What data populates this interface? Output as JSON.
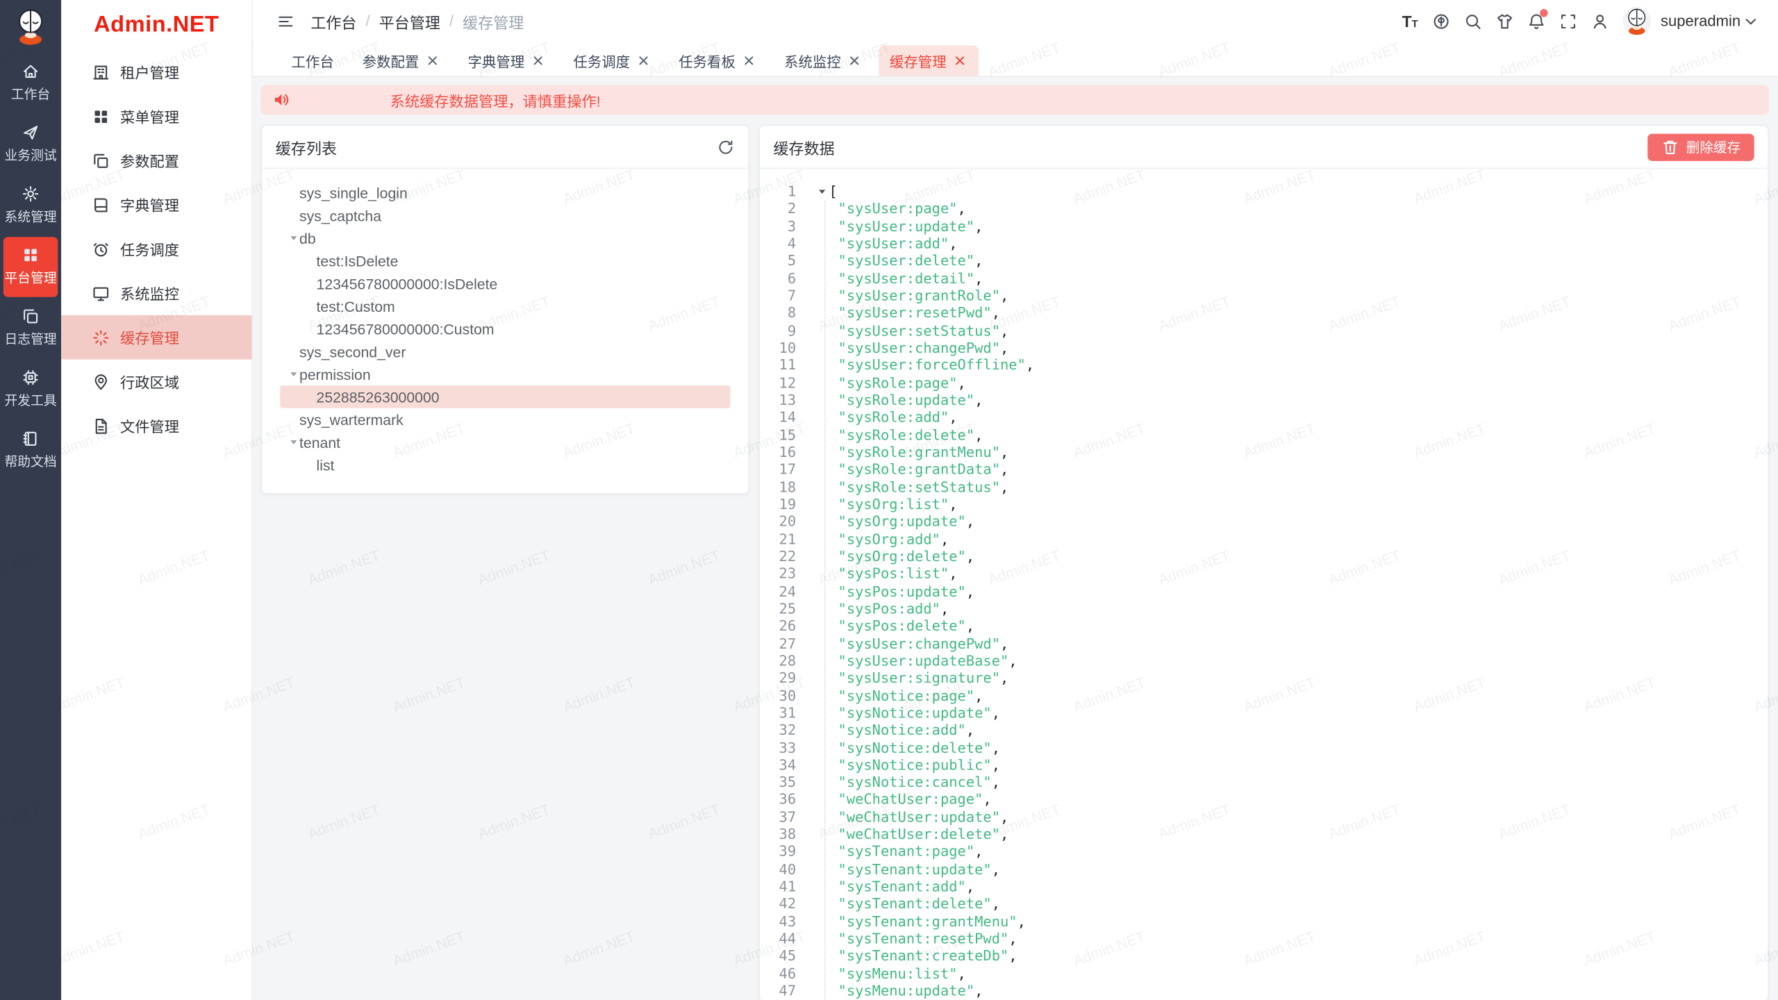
{
  "watermark": {
    "text": "Admin.NET"
  },
  "theme": {
    "brand_red": "#ee4334",
    "logo_red": "#f01f10",
    "danger_button": "#f56c6c",
    "alert_bg": "#fde2e2",
    "alert_text": "#f04e43",
    "sidebar_dark_bg": "#333b4d",
    "active_menu_bg": "#f3cbc6",
    "json_string_green": "#42b983",
    "content_bg": "#f4f5f7"
  },
  "rail": {
    "items": [
      {
        "icon": "home-icon",
        "label": "工作台",
        "active": false
      },
      {
        "icon": "send-icon",
        "label": "业务测试",
        "active": false
      },
      {
        "icon": "gear-icon",
        "label": "系统管理",
        "active": false
      },
      {
        "icon": "grid-icon",
        "label": "平台管理",
        "active": true
      },
      {
        "icon": "copy-icon",
        "label": "日志管理",
        "active": false
      },
      {
        "icon": "chip-icon",
        "label": "开发工具",
        "active": false
      },
      {
        "icon": "notebook-icon",
        "label": "帮助文档",
        "active": false
      }
    ]
  },
  "sidebar": {
    "logo": "Admin.NET",
    "items": [
      {
        "icon": "building-icon",
        "label": "租户管理",
        "active": false
      },
      {
        "icon": "menu-grid-icon",
        "label": "菜单管理",
        "active": false
      },
      {
        "icon": "copy-icon",
        "label": "参数配置",
        "active": false
      },
      {
        "icon": "book-icon",
        "label": "字典管理",
        "active": false
      },
      {
        "icon": "alarm-icon",
        "label": "任务调度",
        "active": false
      },
      {
        "icon": "monitor-icon",
        "label": "系统监控",
        "active": false
      },
      {
        "icon": "spinner-icon",
        "label": "缓存管理",
        "active": true
      },
      {
        "icon": "location-icon",
        "label": "行政区域",
        "active": false
      },
      {
        "icon": "file-icon",
        "label": "文件管理",
        "active": false
      }
    ]
  },
  "header": {
    "breadcrumb": {
      "items": [
        "工作台",
        "平台管理",
        "缓存管理"
      ],
      "separator": "/"
    },
    "actions": [
      {
        "icon": "font-size-icon",
        "badge": false
      },
      {
        "icon": "language-icon",
        "badge": false
      },
      {
        "icon": "search-icon",
        "badge": false
      },
      {
        "icon": "theme-icon",
        "badge": false
      },
      {
        "icon": "notification-bell-icon",
        "badge": true
      },
      {
        "icon": "fullscreen-icon",
        "badge": false
      },
      {
        "icon": "user-icon",
        "badge": false
      }
    ],
    "username": "superadmin"
  },
  "tabs": [
    {
      "label": "工作台",
      "closable": false,
      "active": false
    },
    {
      "label": "参数配置",
      "closable": true,
      "active": false
    },
    {
      "label": "字典管理",
      "closable": true,
      "active": false
    },
    {
      "label": "任务调度",
      "closable": true,
      "active": false
    },
    {
      "label": "任务看板",
      "closable": true,
      "active": false
    },
    {
      "label": "系统监控",
      "closable": true,
      "active": false
    },
    {
      "label": "缓存管理",
      "closable": true,
      "active": true
    }
  ],
  "alert": {
    "text": "系统缓存数据管理，请慎重操作!"
  },
  "cache_list": {
    "title": "缓存列表",
    "tree": [
      {
        "label": "sys_single_login",
        "depth": 1,
        "expanded": false,
        "selected": false
      },
      {
        "label": "sys_captcha",
        "depth": 1,
        "expanded": false,
        "selected": false
      },
      {
        "label": "db",
        "depth": 1,
        "expanded": true,
        "selected": false
      },
      {
        "label": "test:IsDelete",
        "depth": 2,
        "expanded": false,
        "selected": false
      },
      {
        "label": "123456780000000:IsDelete",
        "depth": 2,
        "expanded": false,
        "selected": false
      },
      {
        "label": "test:Custom",
        "depth": 2,
        "expanded": false,
        "selected": false
      },
      {
        "label": "123456780000000:Custom",
        "depth": 2,
        "expanded": false,
        "selected": false
      },
      {
        "label": "sys_second_ver",
        "depth": 1,
        "expanded": false,
        "selected": false
      },
      {
        "label": "permission",
        "depth": 1,
        "expanded": true,
        "selected": false
      },
      {
        "label": "252885263000000",
        "depth": 2,
        "expanded": false,
        "selected": true
      },
      {
        "label": "sys_wartermark",
        "depth": 1,
        "expanded": false,
        "selected": false
      },
      {
        "label": "tenant",
        "depth": 1,
        "expanded": true,
        "selected": false
      },
      {
        "label": "list",
        "depth": 2,
        "expanded": false,
        "selected": false
      }
    ]
  },
  "cache_data": {
    "title": "缓存数据",
    "delete_button": "删除缓存",
    "open_bracket": "[",
    "quote": "\"",
    "comma": ",",
    "values": [
      "sysUser:page",
      "sysUser:update",
      "sysUser:add",
      "sysUser:delete",
      "sysUser:detail",
      "sysUser:grantRole",
      "sysUser:resetPwd",
      "sysUser:setStatus",
      "sysUser:changePwd",
      "sysUser:forceOffline",
      "sysRole:page",
      "sysRole:update",
      "sysRole:add",
      "sysRole:delete",
      "sysRole:grantMenu",
      "sysRole:grantData",
      "sysRole:setStatus",
      "sysOrg:list",
      "sysOrg:update",
      "sysOrg:add",
      "sysOrg:delete",
      "sysPos:list",
      "sysPos:update",
      "sysPos:add",
      "sysPos:delete",
      "sysUser:changePwd",
      "sysUser:updateBase",
      "sysUser:signature",
      "sysNotice:page",
      "sysNotice:update",
      "sysNotice:add",
      "sysNotice:delete",
      "sysNotice:public",
      "sysNotice:cancel",
      "weChatUser:page",
      "weChatUser:update",
      "weChatUser:delete",
      "sysTenant:page",
      "sysTenant:update",
      "sysTenant:add",
      "sysTenant:delete",
      "sysTenant:grantMenu",
      "sysTenant:resetPwd",
      "sysTenant:createDb",
      "sysMenu:list",
      "sysMenu:update"
    ]
  }
}
